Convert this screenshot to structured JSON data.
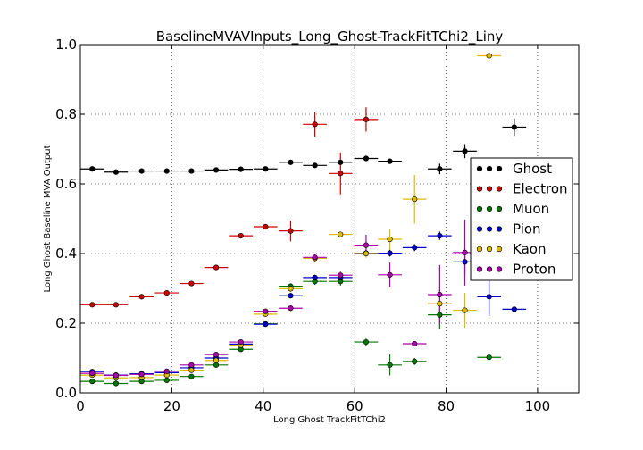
{
  "chart_data": {
    "type": "scatter",
    "title": "BaselineMVAVInputs_Long_Ghost-TrackFitTChi2_Liny",
    "xlabel": "Long Ghost TrackFitTChi2",
    "ylabel": "Long Ghost Baseline MVA Output",
    "xlim": [
      0,
      109
    ],
    "ylim": [
      0,
      1.0
    ],
    "xticks": [
      0,
      20,
      40,
      60,
      80,
      100
    ],
    "xtick_labels": [
      "0",
      "20",
      "40",
      "60",
      "80",
      "100"
    ],
    "yticks": [
      0,
      0.2,
      0.4,
      0.6,
      0.8,
      1.0
    ],
    "ytick_labels": [
      "0.0",
      "0.2",
      "0.4",
      "0.6",
      "0.8",
      "1.0"
    ],
    "grid": true,
    "legend_position": "right",
    "x_bin_half_width": 2.6,
    "series": [
      {
        "name": "Ghost",
        "color": "#000000",
        "x": [
          2.6,
          7.8,
          13.4,
          18.9,
          24.3,
          29.7,
          35.1,
          40.5,
          46.0,
          51.3,
          56.9,
          62.5,
          67.7,
          78.6,
          84.1,
          94.9
        ],
        "y": [
          0.643,
          0.634,
          0.637,
          0.637,
          0.637,
          0.64,
          0.642,
          0.643,
          0.662,
          0.653,
          0.662,
          0.673,
          0.665,
          0.643,
          0.694,
          0.763
        ],
        "yerr": [
          0.006,
          0.004,
          0.004,
          0.004,
          0.004,
          0.004,
          0.004,
          0.004,
          0.005,
          0.006,
          0.006,
          0.006,
          0.006,
          0.015,
          0.02,
          0.025
        ]
      },
      {
        "name": "Electron",
        "color": "#cc0000",
        "x": [
          2.6,
          7.8,
          13.4,
          18.9,
          24.3,
          29.7,
          35.1,
          40.5,
          46.0,
          51.3,
          56.9,
          62.5
        ],
        "y": [
          0.253,
          0.253,
          0.276,
          0.287,
          0.314,
          0.36,
          0.451,
          0.477,
          0.465,
          0.771,
          0.63,
          0.785
        ],
        "yerr": [
          0.004,
          0.003,
          0.004,
          0.004,
          0.004,
          0.005,
          0.006,
          0.008,
          0.03,
          0.035,
          0.06,
          0.035
        ]
      },
      {
        "name": "Muon",
        "color": "#007700",
        "x": [
          2.6,
          7.8,
          13.4,
          18.9,
          24.3,
          29.7,
          35.1,
          40.5,
          46.0,
          51.3,
          56.9,
          62.5,
          67.7,
          73.1,
          78.6,
          89.4
        ],
        "y": [
          0.033,
          0.027,
          0.033,
          0.036,
          0.047,
          0.08,
          0.125,
          0.198,
          0.306,
          0.32,
          0.32,
          0.146,
          0.08,
          0.09,
          0.224,
          0.102
        ],
        "yerr": [
          0.003,
          0.002,
          0.002,
          0.003,
          0.003,
          0.004,
          0.005,
          0.006,
          0.008,
          0.01,
          0.012,
          0.01,
          0.03,
          0.01,
          0.04,
          0.008
        ]
      },
      {
        "name": "Pion",
        "color": "#0000cc",
        "x": [
          2.6,
          7.8,
          13.4,
          18.9,
          24.3,
          29.7,
          35.1,
          40.5,
          46.0,
          51.3,
          56.9,
          62.5,
          67.7,
          73.1,
          78.6,
          84.1,
          89.4,
          94.9
        ],
        "y": [
          0.061,
          0.051,
          0.055,
          0.058,
          0.072,
          0.1,
          0.14,
          0.197,
          0.279,
          0.331,
          0.331,
          0.401,
          0.401,
          0.417,
          0.451,
          0.376,
          0.276,
          0.24
        ],
        "yerr": [
          0.003,
          0.002,
          0.002,
          0.002,
          0.003,
          0.003,
          0.004,
          0.004,
          0.006,
          0.008,
          0.01,
          0.01,
          0.01,
          0.01,
          0.012,
          0.04,
          0.055,
          0.006
        ]
      },
      {
        "name": "Kaon",
        "color": "#ddbb00",
        "x": [
          2.6,
          7.8,
          13.4,
          18.9,
          24.3,
          29.7,
          35.1,
          40.5,
          46.0,
          51.3,
          56.9,
          62.5,
          67.7,
          73.1,
          78.6,
          84.1,
          89.4
        ],
        "y": [
          0.051,
          0.043,
          0.044,
          0.051,
          0.065,
          0.093,
          0.137,
          0.226,
          0.299,
          0.386,
          0.455,
          0.4,
          0.441,
          0.556,
          0.256,
          0.237,
          0.968
        ],
        "yerr": [
          0.003,
          0.002,
          0.002,
          0.003,
          0.003,
          0.004,
          0.005,
          0.008,
          0.01,
          0.01,
          0.008,
          0.012,
          0.03,
          0.07,
          0.05,
          0.05,
          0.005
        ]
      },
      {
        "name": "Proton",
        "color": "#aa00aa",
        "x": [
          2.6,
          7.8,
          13.4,
          18.9,
          24.3,
          29.7,
          35.1,
          40.5,
          46.0,
          51.3,
          56.9,
          62.5,
          67.7,
          73.1,
          78.6,
          84.1
        ],
        "y": [
          0.056,
          0.05,
          0.053,
          0.062,
          0.08,
          0.11,
          0.146,
          0.234,
          0.243,
          0.389,
          0.338,
          0.424,
          0.339,
          0.141,
          0.282,
          0.403
        ],
        "yerr": [
          0.003,
          0.002,
          0.002,
          0.003,
          0.003,
          0.004,
          0.005,
          0.007,
          0.008,
          0.01,
          0.01,
          0.03,
          0.035,
          0.006,
          0.085,
          0.095
        ]
      }
    ]
  }
}
